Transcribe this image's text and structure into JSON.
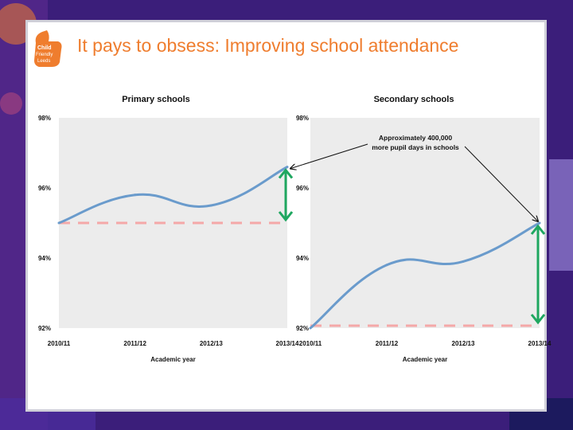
{
  "slide": {
    "title": "It pays to obsess: Improving school attendance",
    "logo_text": [
      "Child",
      "Friendly",
      "Leeds"
    ]
  },
  "annotation": {
    "line1": "Approximately 400,000",
    "line2": "more pupil days in schools"
  },
  "colors": {
    "line": "#6a9bcc",
    "baseline_dash": "#f4a8a8",
    "arrow": "#1fa760",
    "title": "#ef7d2e",
    "plot_bg": "#ececec"
  },
  "chart_data": [
    {
      "type": "line",
      "title": "Primary schools",
      "xlabel": "Academic year",
      "ylabel": "",
      "categories": [
        "2010/11",
        "2011/12",
        "2012/13",
        "2013/14"
      ],
      "series": [
        {
          "values": [
            95.0,
            95.8,
            95.5,
            96.6
          ]
        }
      ],
      "baseline": 95.0,
      "ylim": [
        92,
        98
      ],
      "yticks": [
        "92%",
        "94%",
        "96%",
        "98%"
      ],
      "ytick_values": [
        92,
        94,
        96,
        98
      ],
      "grid": false,
      "legend": "none"
    },
    {
      "type": "line",
      "title": "Secondary schools",
      "xlabel": "Academic year",
      "ylabel": "",
      "categories": [
        "2010/11",
        "2011/12",
        "2012/13",
        "2013/14"
      ],
      "series": [
        {
          "values": [
            92.0,
            93.8,
            93.9,
            95.0
          ]
        }
      ],
      "baseline": 92.0,
      "ylim": [
        92,
        98
      ],
      "yticks": [
        "92%",
        "94%",
        "96%",
        "98%"
      ],
      "ytick_values": [
        92,
        94,
        96,
        98
      ],
      "grid": false,
      "legend": "none"
    }
  ]
}
